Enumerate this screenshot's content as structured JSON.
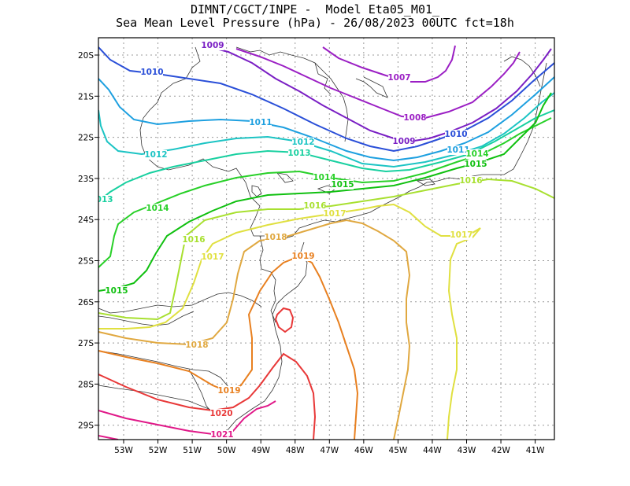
{
  "title": {
    "line1": "DIMNT/CGCT/INPE -  Model Eta05_M01_",
    "line2": "Sea Mean Level Pressure (hPa) - 26/08/2023 00UTC fct=18h"
  },
  "axes": {
    "lon_labels": [
      "53W",
      "52W",
      "51W",
      "50W",
      "49W",
      "48W",
      "47W",
      "46W",
      "45W",
      "44W",
      "43W",
      "42W",
      "41W"
    ],
    "lat_labels": [
      "20S",
      "21S",
      "22S",
      "23S",
      "24S",
      "25S",
      "26S",
      "27S",
      "28S",
      "29S"
    ]
  },
  "isobars": [
    {
      "value": "1007",
      "color": "#9b1fc4"
    },
    {
      "value": "1008",
      "color": "#9b1fc4"
    },
    {
      "value": "1009",
      "color": "#7a1fc4"
    },
    {
      "value": "1010",
      "color": "#2a4fd8"
    },
    {
      "value": "1011",
      "color": "#1ea0e0"
    },
    {
      "value": "1012",
      "color": "#1cc4c4"
    },
    {
      "value": "1013",
      "color": "#18d0a0"
    },
    {
      "value": "1014",
      "color": "#28d028"
    },
    {
      "value": "1015",
      "color": "#10c010"
    },
    {
      "value": "1016",
      "color": "#a8e030"
    },
    {
      "value": "1017",
      "color": "#e0e040"
    },
    {
      "value": "1018",
      "color": "#e0a840"
    },
    {
      "value": "1019",
      "color": "#e88020"
    },
    {
      "value": "1020",
      "color": "#e83838"
    },
    {
      "value": "1021",
      "color": "#e01888"
    }
  ]
}
